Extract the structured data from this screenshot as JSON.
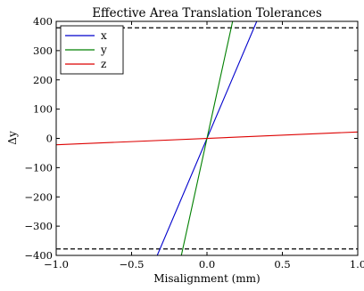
{
  "chart_data": {
    "type": "line",
    "title": "Effective Area Translation Tolerances",
    "xlabel": "Misalignment (mm)",
    "ylabel": "Δy",
    "xlim": [
      -1.0,
      1.0
    ],
    "ylim": [
      -400,
      400
    ],
    "x_ticks": [
      -1.0,
      -0.5,
      0.0,
      0.5,
      1.0
    ],
    "x_tick_labels": [
      "−1.0",
      "−0.5",
      "0.0",
      "0.5",
      "1.0"
    ],
    "y_ticks": [
      -400,
      -300,
      -200,
      -100,
      0,
      100,
      200,
      300,
      400
    ],
    "y_tick_labels": [
      "−400",
      "−300",
      "−200",
      "−100",
      "0",
      "100",
      "200",
      "300",
      "400"
    ],
    "grid": false,
    "legend_placement": "top-left",
    "series": [
      {
        "name": "x",
        "color": "#0000cc",
        "x": [
          -0.33,
          0.33
        ],
        "y": [
          -400,
          400
        ]
      },
      {
        "name": "y",
        "color": "#008000",
        "x": [
          -0.17,
          0.17
        ],
        "y": [
          -400,
          400
        ]
      },
      {
        "name": "z",
        "color": "#dd0000",
        "x": [
          -1.0,
          1.0
        ],
        "y": [
          -22,
          22
        ]
      }
    ],
    "reference_lines": [
      {
        "y": 378,
        "style": "dashed",
        "color": "#000000"
      },
      {
        "y": -378,
        "style": "dashed",
        "color": "#000000"
      }
    ]
  }
}
